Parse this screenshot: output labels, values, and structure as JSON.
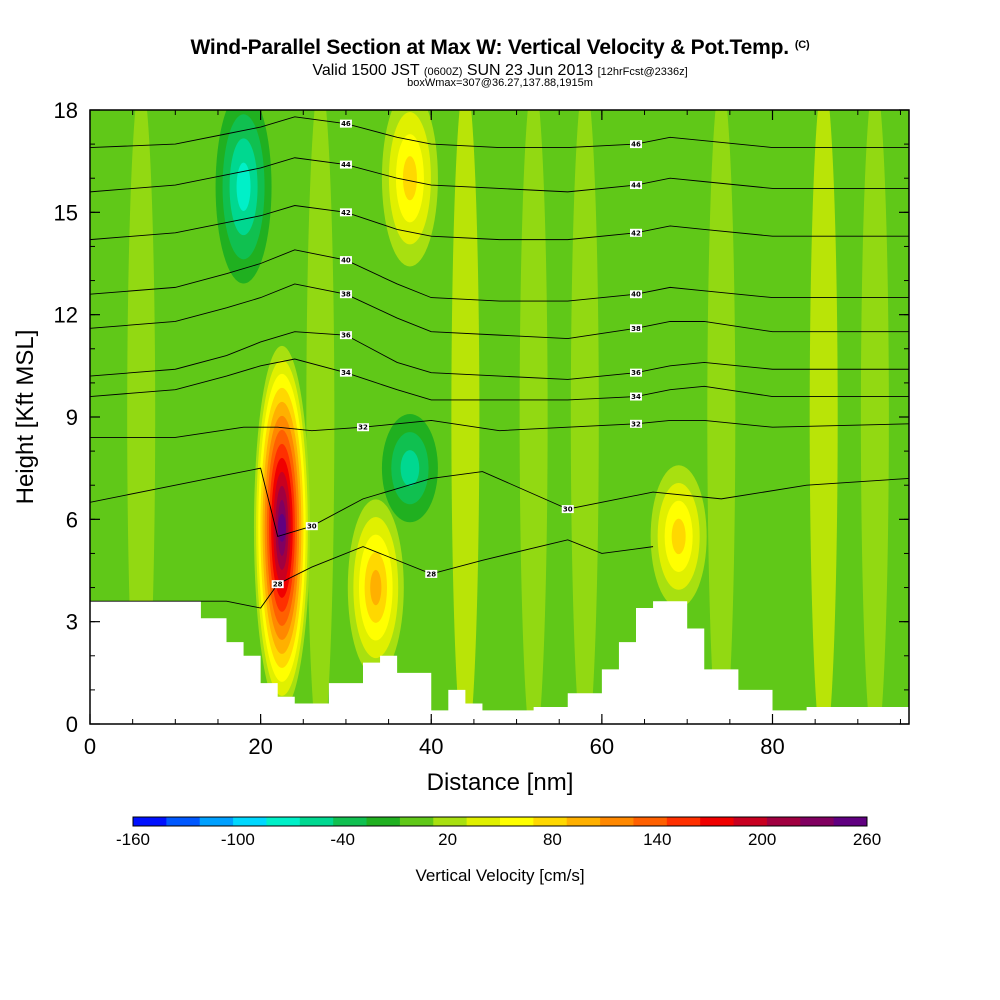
{
  "header": {
    "title": "Wind-Parallel Section at Max W: Vertical Velocity & Pot.Temp.",
    "title_mark": "(C)",
    "valid_prefix": "Valid 1500 JST",
    "valid_utc": "(0600Z)",
    "valid_date": "SUN 23 Jun 2013",
    "forecast": "[12hrFcst@2336z]",
    "box_info": "boxWmax=307@36.27,137.88,1915m"
  },
  "chart_data": {
    "type": "heatmap",
    "xlabel": "Distance [nm]",
    "ylabel": "Height [Kft MSL]",
    "xlim": [
      0,
      96
    ],
    "ylim": [
      0,
      18
    ],
    "x_ticks": [
      "0",
      "20",
      "40",
      "60",
      "80"
    ],
    "y_ticks": [
      "0",
      "3",
      "6",
      "9",
      "12",
      "15",
      "18"
    ],
    "colorbar": {
      "title": "Vertical Velocity [cm/s]",
      "levels": [
        -160,
        -140,
        -120,
        -100,
        -80,
        -60,
        -40,
        -20,
        0,
        20,
        40,
        60,
        80,
        100,
        120,
        140,
        160,
        180,
        200,
        220,
        240,
        260
      ],
      "tick_labels": [
        "-160",
        "-100",
        "-40",
        "20",
        "80",
        "140",
        "200",
        "260"
      ],
      "colors": [
        "#0010ff",
        "#0058ff",
        "#00a0ff",
        "#00d8ff",
        "#00f0c8",
        "#00d890",
        "#10c050",
        "#20b020",
        "#60c818",
        "#a8e010",
        "#e0f000",
        "#ffff00",
        "#ffd800",
        "#ffb000",
        "#ff8800",
        "#ff6000",
        "#ff3000",
        "#f00000",
        "#c80020",
        "#a00040",
        "#800060",
        "#600080"
      ]
    },
    "updrafts": [
      {
        "x": 22.5,
        "top_kft": 10.5,
        "bottom_kft": 1.0,
        "peak_cms": 260
      },
      {
        "x": 33.5,
        "top_kft": 6.0,
        "bottom_kft": 2.0,
        "peak_cms": 100
      },
      {
        "x": 37.5,
        "top_kft": 18.0,
        "bottom_kft": 14.0,
        "peak_cms": 80
      },
      {
        "x": 69.0,
        "top_kft": 7.0,
        "bottom_kft": 4.0,
        "peak_cms": 80
      }
    ],
    "downdrafts": [
      {
        "x": 18.0,
        "top_kft": 18.0,
        "bottom_kft": 13.5,
        "peak_cms": -80
      },
      {
        "x": 37.5,
        "top_kft": 8.5,
        "bottom_kft": 6.5,
        "peak_cms": -60
      }
    ],
    "terrain": {
      "x": [
        0,
        10,
        13,
        16,
        18,
        20,
        22,
        24,
        28,
        32,
        34,
        36,
        40,
        42,
        44,
        46,
        52,
        56,
        60,
        62,
        64,
        66,
        70,
        72,
        76,
        80,
        84,
        96
      ],
      "height_kft": [
        3.6,
        3.6,
        3.1,
        2.4,
        2.0,
        1.2,
        0.8,
        0.6,
        1.2,
        1.8,
        2.0,
        1.5,
        0.4,
        1.0,
        0.6,
        0.4,
        0.5,
        0.9,
        1.6,
        2.4,
        3.4,
        3.6,
        2.8,
        1.6,
        1.0,
        0.4,
        0.5,
        0.3
      ]
    },
    "isentropes": [
      {
        "label": "28",
        "x": [
          0,
          10,
          16,
          20,
          22,
          26,
          32,
          36,
          40,
          46,
          56,
          60,
          66
        ],
        "height_kft": [
          3.6,
          3.6,
          3.6,
          3.4,
          4.1,
          4.6,
          5.2,
          4.8,
          4.4,
          4.8,
          5.4,
          5.0,
          5.2
        ]
      },
      {
        "label": "30",
        "x": [
          0,
          10,
          16,
          20,
          22,
          26,
          32,
          36,
          40,
          46,
          56,
          66,
          74,
          84,
          96
        ],
        "height_kft": [
          6.5,
          7.0,
          7.3,
          7.5,
          5.5,
          5.8,
          6.6,
          6.9,
          7.2,
          7.4,
          6.3,
          6.8,
          6.6,
          7.0,
          7.2
        ]
      },
      {
        "label": "32",
        "x": [
          0,
          10,
          18,
          22,
          26,
          32,
          36,
          40,
          48,
          56,
          64,
          68,
          72,
          80,
          96
        ],
        "height_kft": [
          8.4,
          8.4,
          8.7,
          8.7,
          8.6,
          8.7,
          8.8,
          8.9,
          8.6,
          8.7,
          8.8,
          8.9,
          8.9,
          8.7,
          8.8
        ]
      },
      {
        "label": "34",
        "x": [
          0,
          10,
          16,
          20,
          24,
          30,
          36,
          40,
          48,
          56,
          64,
          68,
          72,
          80,
          96
        ],
        "height_kft": [
          9.6,
          9.8,
          10.2,
          10.5,
          10.7,
          10.3,
          9.8,
          9.5,
          9.5,
          9.5,
          9.6,
          9.8,
          9.9,
          9.6,
          9.6
        ]
      },
      {
        "label": "36",
        "x": [
          0,
          10,
          16,
          20,
          24,
          30,
          36,
          40,
          48,
          56,
          64,
          68,
          72,
          80,
          96
        ],
        "height_kft": [
          10.2,
          10.4,
          10.8,
          11.2,
          11.5,
          11.4,
          10.6,
          10.3,
          10.2,
          10.1,
          10.3,
          10.5,
          10.6,
          10.4,
          10.4
        ]
      },
      {
        "label": "38",
        "x": [
          0,
          10,
          16,
          20,
          24,
          30,
          36,
          40,
          48,
          56,
          64,
          68,
          72,
          80,
          96
        ],
        "height_kft": [
          11.6,
          11.8,
          12.2,
          12.5,
          12.9,
          12.6,
          11.9,
          11.5,
          11.4,
          11.3,
          11.6,
          11.8,
          11.8,
          11.5,
          11.5
        ]
      },
      {
        "label": "40",
        "x": [
          0,
          10,
          16,
          20,
          24,
          30,
          36,
          40,
          48,
          56,
          64,
          68,
          72,
          80,
          96
        ],
        "height_kft": [
          12.6,
          12.8,
          13.2,
          13.5,
          13.9,
          13.6,
          12.9,
          12.5,
          12.4,
          12.4,
          12.6,
          12.8,
          12.7,
          12.5,
          12.5
        ]
      },
      {
        "label": "42",
        "x": [
          0,
          10,
          16,
          20,
          24,
          30,
          36,
          40,
          48,
          56,
          64,
          68,
          72,
          80,
          96
        ],
        "height_kft": [
          14.2,
          14.4,
          14.7,
          14.9,
          15.2,
          15.0,
          14.5,
          14.3,
          14.2,
          14.2,
          14.4,
          14.6,
          14.5,
          14.3,
          14.3
        ]
      },
      {
        "label": "44",
        "x": [
          0,
          10,
          16,
          20,
          24,
          30,
          36,
          40,
          48,
          56,
          64,
          68,
          72,
          80,
          96
        ],
        "height_kft": [
          15.6,
          15.8,
          16.1,
          16.3,
          16.6,
          16.4,
          16.0,
          15.8,
          15.7,
          15.6,
          15.8,
          16.0,
          15.9,
          15.7,
          15.7
        ]
      },
      {
        "label": "46",
        "x": [
          0,
          10,
          16,
          20,
          24,
          30,
          36,
          40,
          48,
          56,
          64,
          68,
          72,
          80,
          96
        ],
        "height_kft": [
          16.9,
          17.0,
          17.3,
          17.5,
          17.8,
          17.6,
          17.2,
          17.0,
          16.9,
          16.9,
          17.0,
          17.2,
          17.1,
          16.9,
          16.9
        ]
      }
    ]
  }
}
